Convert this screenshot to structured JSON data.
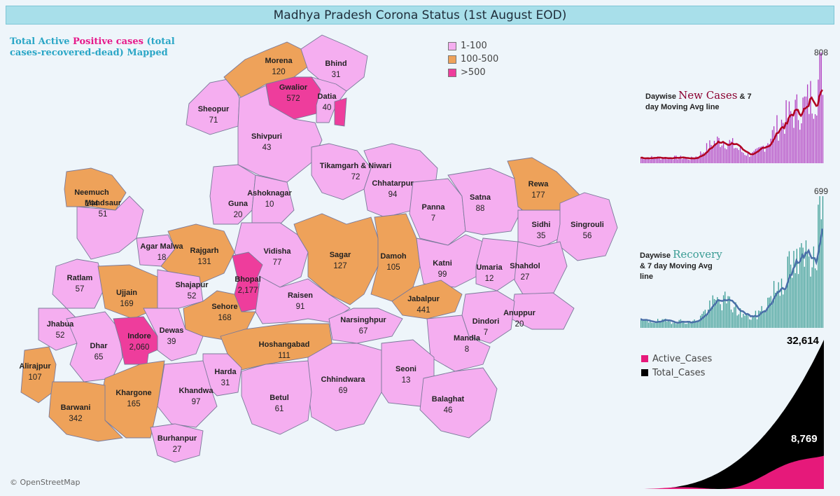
{
  "title": "Madhya Pradesh Corona Status (1st August EOD)",
  "subtitle": {
    "part1": "Total Active ",
    "part2": "Positive cases",
    "part3": " (total cases-recovered-dead) Mapped"
  },
  "legend": [
    {
      "label": "1-100",
      "color": "#f5aef0"
    },
    {
      "label": "100-500",
      "color": "#eea25a"
    },
    {
      "label": ">500",
      "color": "#ee3d9c"
    }
  ],
  "attribution": "© OpenStreetMap",
  "districts": [
    {
      "name": "Morena",
      "value": "120"
    },
    {
      "name": "Bhind",
      "value": "31"
    },
    {
      "name": "Gwalior",
      "value": "572"
    },
    {
      "name": "Datia",
      "value": "40"
    },
    {
      "name": "Sheopur",
      "value": "71"
    },
    {
      "name": "Shivpuri",
      "value": "43"
    },
    {
      "name": "Tikamgarh & Niwari",
      "value": "72"
    },
    {
      "name": "Chhatarpur",
      "value": "94"
    },
    {
      "name": "Panna",
      "value": "7"
    },
    {
      "name": "Satna",
      "value": "88"
    },
    {
      "name": "Rewa",
      "value": "177"
    },
    {
      "name": "Sidhi",
      "value": "35"
    },
    {
      "name": "Singrouli",
      "value": "56"
    },
    {
      "name": "Neemuch",
      "value": "144"
    },
    {
      "name": "Mandsaur",
      "value": "51"
    },
    {
      "name": "Guna",
      "value": "20"
    },
    {
      "name": "Ashoknagar",
      "value": "10"
    },
    {
      "name": "Agar Malwa",
      "value": "18"
    },
    {
      "name": "Rajgarh",
      "value": "131"
    },
    {
      "name": "Vidisha",
      "value": "77"
    },
    {
      "name": "Sagar",
      "value": "127"
    },
    {
      "name": "Damoh",
      "value": "105"
    },
    {
      "name": "Katni",
      "value": "99"
    },
    {
      "name": "Umaria",
      "value": "12"
    },
    {
      "name": "Shahdol",
      "value": "27"
    },
    {
      "name": "Ratlam",
      "value": "57"
    },
    {
      "name": "Ujjain",
      "value": "169"
    },
    {
      "name": "Shajapur",
      "value": "52"
    },
    {
      "name": "Bhopal",
      "value": "2,177"
    },
    {
      "name": "Raisen",
      "value": "91"
    },
    {
      "name": "Sehore",
      "value": "168"
    },
    {
      "name": "Jabalpur",
      "value": "441"
    },
    {
      "name": "Anuppur",
      "value": "20"
    },
    {
      "name": "Dindori",
      "value": "7"
    },
    {
      "name": "Jhabua",
      "value": "52"
    },
    {
      "name": "Indore",
      "value": "2,060"
    },
    {
      "name": "Dewas",
      "value": "39"
    },
    {
      "name": "Dhar",
      "value": "65"
    },
    {
      "name": "Narsinghpur",
      "value": "67"
    },
    {
      "name": "Mandla",
      "value": "8"
    },
    {
      "name": "Hoshangabad",
      "value": "111"
    },
    {
      "name": "Alirajpur",
      "value": "107"
    },
    {
      "name": "Harda",
      "value": "31"
    },
    {
      "name": "Khandwa",
      "value": "97"
    },
    {
      "name": "Chhindwara",
      "value": "69"
    },
    {
      "name": "Seoni",
      "value": "13"
    },
    {
      "name": "Betul",
      "value": "61"
    },
    {
      "name": "Balaghat",
      "value": "46"
    },
    {
      "name": "Khargone",
      "value": "165"
    },
    {
      "name": "Barwani",
      "value": "342"
    },
    {
      "name": "Burhanpur",
      "value": "27"
    }
  ],
  "new_cases_chart": {
    "label_prefix": "Daywise ",
    "label_highlight": "New Cases",
    "label_suffix1": "  & 7",
    "label_suffix2": "day Moving Avg line",
    "peak_label": "808",
    "bar_color": "#b03cc0",
    "line_color": "#b00020"
  },
  "recovery_chart": {
    "label_prefix": "Daywise ",
    "label_highlight": "Recovery",
    "label_suffix1": "& 7 day Moving Avg",
    "label_suffix2": "line",
    "peak_label": "699",
    "bar_color": "#3a9c94",
    "line_color": "#4a6fa8"
  },
  "cumulative_chart": {
    "series": [
      {
        "name": "Active_Cases",
        "color": "#e6197a"
      },
      {
        "name": "Total_Cases",
        "color": "#000000"
      }
    ],
    "total_label": "32,614",
    "active_label": "8,769"
  }
}
